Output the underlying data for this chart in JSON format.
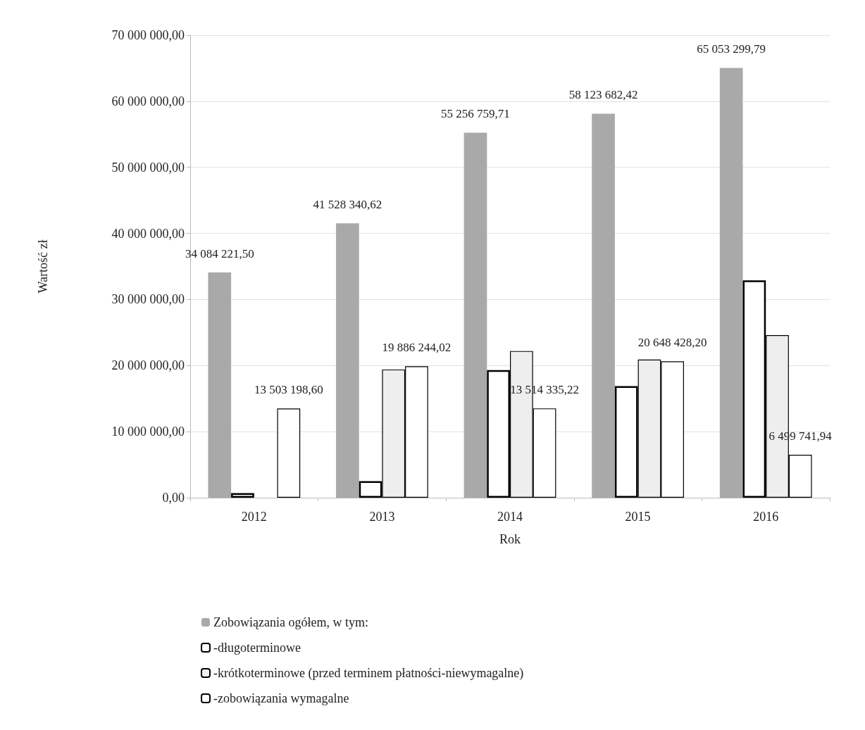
{
  "chart_data": {
    "type": "bar",
    "xlabel": "Rok",
    "ylabel": "Wartość zł",
    "categories": [
      "2012",
      "2013",
      "2014",
      "2015",
      "2016"
    ],
    "ylim": [
      0,
      70000000
    ],
    "yticks": [
      {
        "value": 0,
        "label": "0,00"
      },
      {
        "value": 10000000,
        "label": "10 000 000,00"
      },
      {
        "value": 20000000,
        "label": "20 000 000,00"
      },
      {
        "value": 30000000,
        "label": "30 000 000,00"
      },
      {
        "value": 40000000,
        "label": "40 000 000,00"
      },
      {
        "value": 50000000,
        "label": "50 000 000,00"
      },
      {
        "value": 60000000,
        "label": "60 000 000,00"
      },
      {
        "value": 70000000,
        "label": "70 000 000,00"
      }
    ],
    "grid": "y",
    "legend": "bottom",
    "series": [
      {
        "name": "Zobowiązania ogółem, w tym:",
        "color": "#a9a9a9",
        "values": [
          34084221.5,
          41528340.62,
          55256759.71,
          58123682.42,
          65053299.79
        ],
        "value_labels": [
          "34 084 221,50",
          "41 528 340,62",
          "55 256 759,71",
          "58 123 682,42",
          "65 053 299,79"
        ]
      },
      {
        "name": "-długoterminowe",
        "color": "#ffffff",
        "values": [
          700000,
          2500000,
          19300000,
          16900000,
          32900000
        ]
      },
      {
        "name": "-krótkoterminowe (przed terminem płatności-niewymagalne)",
        "color": "#eeeeee",
        "values": [
          null,
          19400000,
          22200000,
          20900000,
          24600000
        ]
      },
      {
        "name": "-zobowiązania wymagalne",
        "color": "#ffffff",
        "values": [
          13503198.6,
          19886244.02,
          13514335.22,
          20648428.2,
          6499741.94
        ],
        "value_labels": [
          "13 503 198,60",
          "19 886 244,02",
          "13 514 335,22",
          "20 648 428,20",
          "6 499 741,94"
        ]
      }
    ]
  }
}
